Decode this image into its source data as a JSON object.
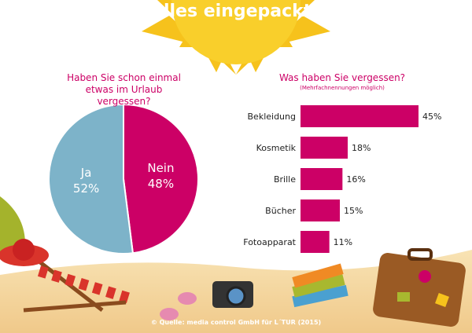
{
  "title": "Alles eingepackt?",
  "source": "© Quelle: media control GmbH für L´TUR (2015)",
  "chart_data": [
    {
      "type": "pie",
      "title": "Haben Sie schon einmal etwas im Urlaub vergessen?",
      "categories": [
        "Ja",
        "Nein"
      ],
      "values": [
        52,
        48
      ],
      "value_labels": [
        "52%",
        "48%"
      ],
      "colors": [
        "#7db3c9",
        "#cc0066"
      ]
    },
    {
      "type": "bar",
      "title": "Was haben Sie vergessen?",
      "subtitle": "(Mehrfachnennungen möglich)",
      "categories": [
        "Bekleidung",
        "Kosmetik",
        "Brille",
        "Bücher",
        "Fotoapparat"
      ],
      "values": [
        45,
        18,
        16,
        15,
        11
      ],
      "value_labels": [
        "45%",
        "18%",
        "16%",
        "15%",
        "11%"
      ],
      "color": "#cc0066"
    }
  ]
}
